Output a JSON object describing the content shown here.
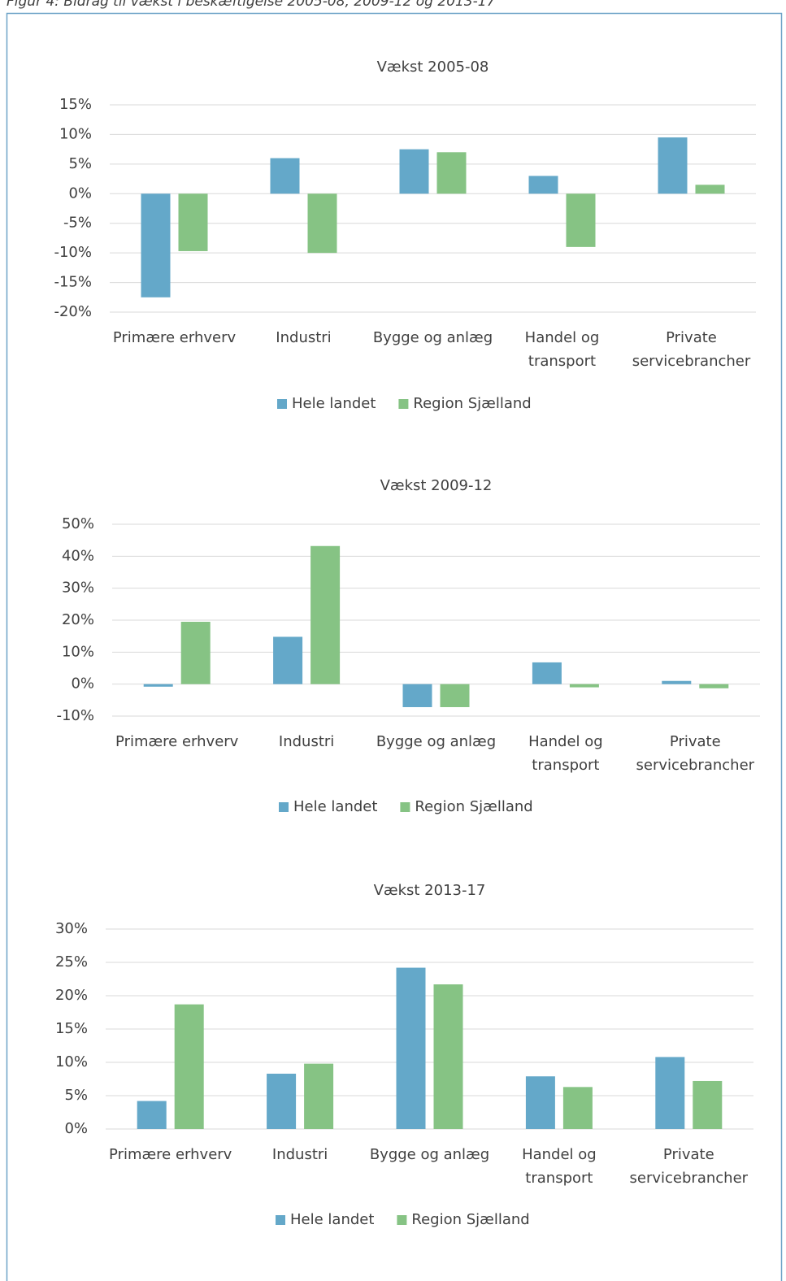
{
  "header": {
    "title": "Figur 4: Bidrag til vækst i beskæftigelse 2005-08, 2009-12 og 2013-17"
  },
  "chart_data": [
    {
      "type": "bar",
      "title": "Vækst 2005-08",
      "categories": [
        "Primære erhverv",
        "Industri",
        "Bygge og anlæg",
        "Handel og transport",
        "Private servicebrancher"
      ],
      "series": [
        {
          "name": "Hele landet",
          "color": "#64a8c9",
          "values": [
            -17.5,
            6,
            7.5,
            3,
            9.5
          ]
        },
        {
          "name": "Region Sjælland",
          "color": "#86c384",
          "values": [
            -9.7,
            -10,
            7,
            -9,
            1.5
          ]
        }
      ],
      "ylim": [
        -20,
        15
      ],
      "yticks": [
        {
          "value": 15,
          "label": "15%"
        },
        {
          "value": 10,
          "label": "10%"
        },
        {
          "value": 5,
          "label": "5%"
        },
        {
          "value": 0,
          "label": "0%"
        },
        {
          "value": -5,
          "label": "-5%"
        },
        {
          "value": -10,
          "label": "-10%"
        },
        {
          "value": -15,
          "label": "-15%"
        },
        {
          "value": -20,
          "label": "-20%"
        }
      ],
      "grid": true,
      "legend": "bottom"
    },
    {
      "type": "bar",
      "title": "Vækst 2009-12",
      "categories": [
        "Primære erhverv",
        "Industri",
        "Bygge og anlæg",
        "Handel og transport",
        "Private servicebrancher"
      ],
      "series": [
        {
          "name": "Hele landet",
          "color": "#64a8c9",
          "values": [
            -0.8,
            14.8,
            -7.2,
            6.8,
            1
          ]
        },
        {
          "name": "Region Sjælland",
          "color": "#86c384",
          "values": [
            19.5,
            43.2,
            -7.2,
            -1,
            -1.3
          ]
        }
      ],
      "ylim": [
        -10,
        50
      ],
      "yticks": [
        {
          "value": 50,
          "label": "50%"
        },
        {
          "value": 40,
          "label": "40%"
        },
        {
          "value": 30,
          "label": "30%"
        },
        {
          "value": 20,
          "label": "20%"
        },
        {
          "value": 10,
          "label": "10%"
        },
        {
          "value": 0,
          "label": "0%"
        },
        {
          "value": -10,
          "label": "-10%"
        }
      ],
      "grid": true,
      "legend": "bottom"
    },
    {
      "type": "bar",
      "title": "Vækst 2013-17",
      "categories": [
        "Primære erhverv",
        "Industri",
        "Bygge og anlæg",
        "Handel og transport",
        "Private servicebrancher"
      ],
      "series": [
        {
          "name": "Hele landet",
          "color": "#64a8c9",
          "values": [
            4.2,
            8.3,
            24.2,
            7.9,
            10.8
          ]
        },
        {
          "name": "Region Sjælland",
          "color": "#86c384",
          "values": [
            18.7,
            9.8,
            21.7,
            6.3,
            7.2
          ]
        }
      ],
      "ylim": [
        0,
        30
      ],
      "yticks": [
        {
          "value": 30,
          "label": "30%"
        },
        {
          "value": 25,
          "label": "25%"
        },
        {
          "value": 20,
          "label": "20%"
        },
        {
          "value": 15,
          "label": "15%"
        },
        {
          "value": 10,
          "label": "10%"
        },
        {
          "value": 5,
          "label": "5%"
        },
        {
          "value": 0,
          "label": "0%"
        }
      ],
      "grid": true,
      "legend": "bottom"
    }
  ]
}
